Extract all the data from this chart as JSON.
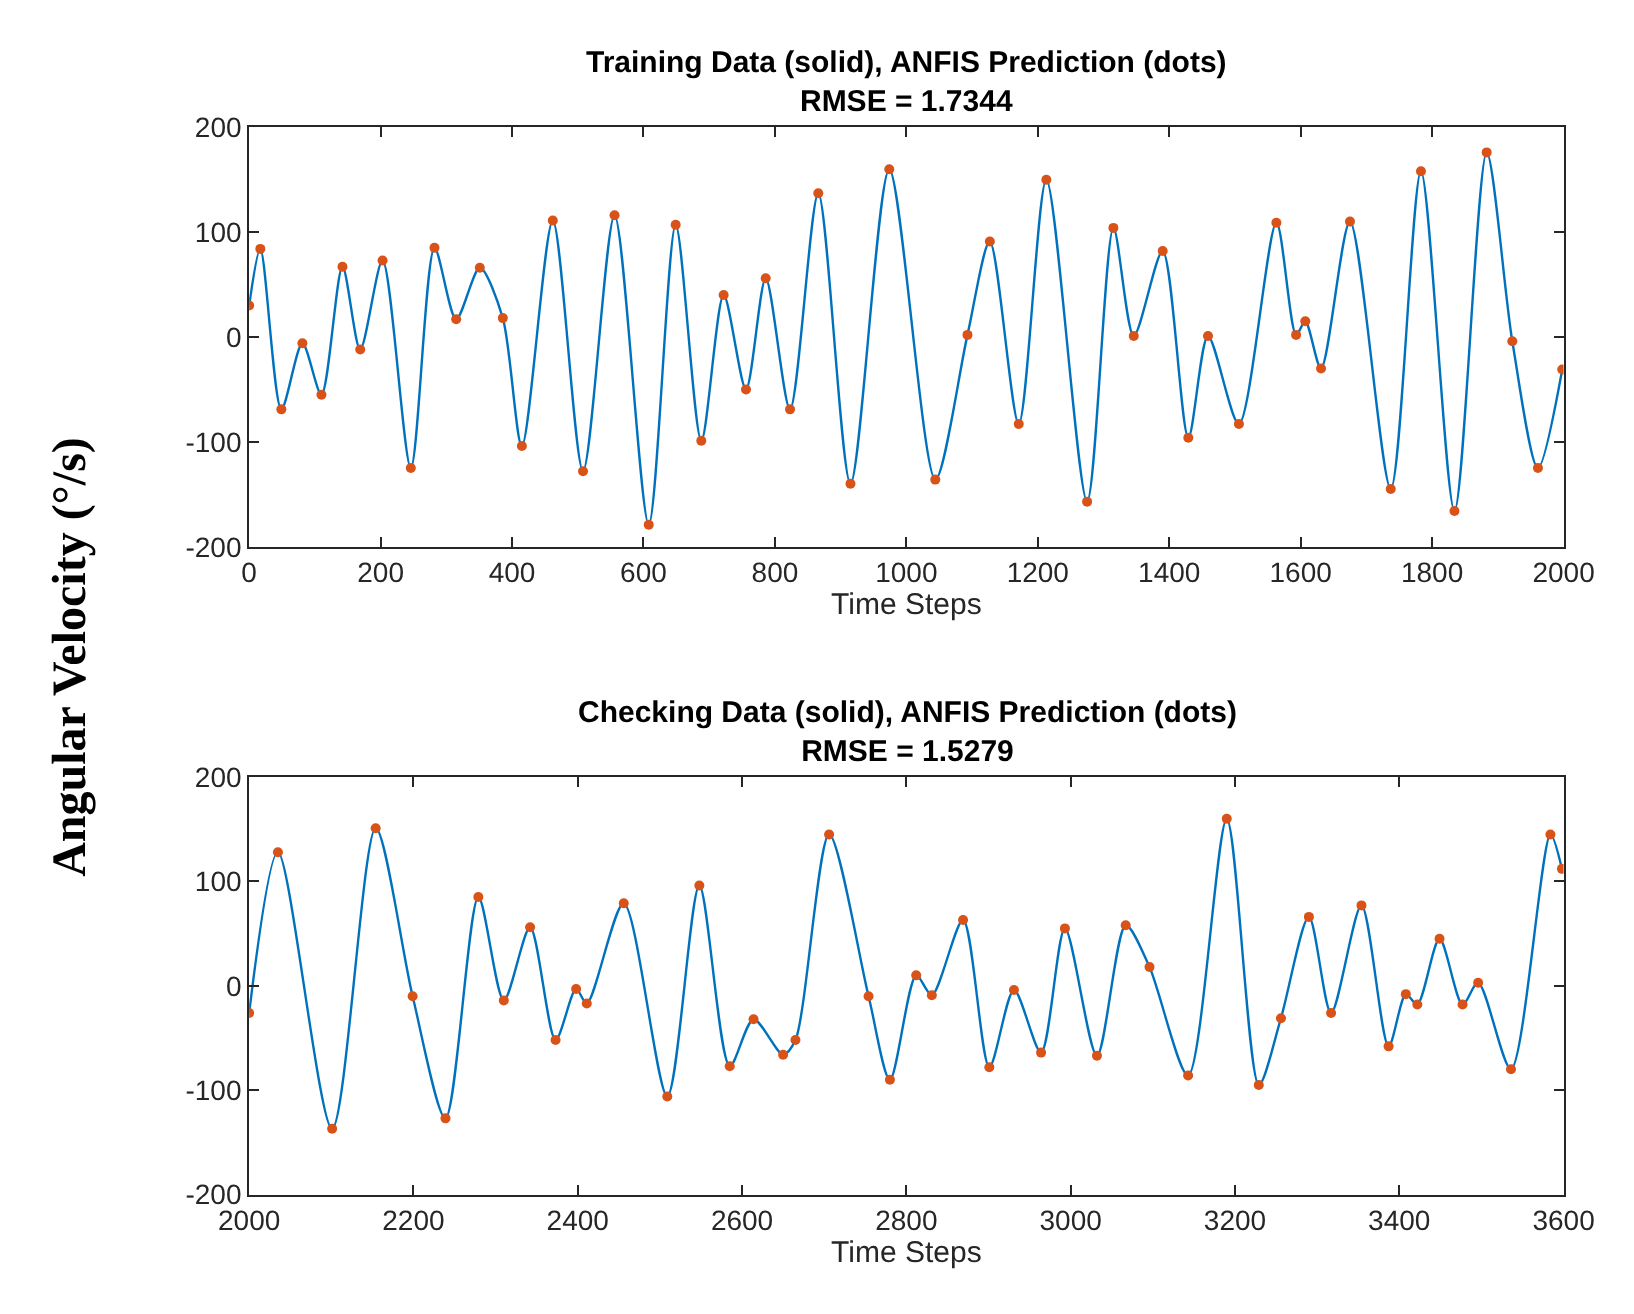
{
  "chart_data": [
    {
      "type": "line",
      "title": "Training Data (solid), ANFIS Prediction (dots)",
      "subtitle": "RMSE = 1.7344",
      "xlabel": "Time Steps",
      "ylabel": "Angular Velocity (°/s)",
      "xlim": [
        0,
        2000
      ],
      "xticks": [
        0,
        200,
        400,
        600,
        800,
        1000,
        1200,
        1400,
        1600,
        1800,
        2000
      ],
      "ylim": [
        -200,
        200
      ],
      "yticks": [
        -200,
        -100,
        0,
        100,
        200
      ],
      "x": [
        0,
        17,
        49,
        81,
        110,
        142,
        169,
        203,
        246,
        282,
        315,
        351,
        386,
        415,
        462,
        508,
        556,
        608,
        649,
        688,
        722,
        756,
        786,
        823,
        866,
        915,
        974,
        1044,
        1093,
        1127,
        1171,
        1213,
        1275,
        1315,
        1346,
        1390,
        1429,
        1459,
        1506,
        1563,
        1593,
        1607,
        1631,
        1675,
        1737,
        1783,
        1834,
        1883,
        1922,
        1961,
        1998
      ],
      "series": [
        {
          "color": "#0072bd",
          "marker": "none",
          "line_style": "solid",
          "values": [
            30,
            84,
            -69,
            -6,
            -55,
            67,
            -12,
            73,
            -125,
            85,
            17,
            66,
            18,
            -104,
            111,
            -128,
            116,
            -179,
            107,
            -99,
            40,
            -50,
            56,
            -69,
            137,
            -140,
            160,
            -136,
            2,
            91,
            -83,
            150,
            -157,
            104,
            1,
            82,
            -96,
            1,
            -83,
            109,
            2,
            15,
            -30,
            110,
            -145,
            158,
            -166,
            176,
            -4,
            -125,
            -31
          ]
        },
        {
          "type": "scatter",
          "color": "#d95319",
          "marker": "circle",
          "values": [
            30,
            84,
            -69,
            -6,
            -55,
            67,
            -12,
            73,
            -125,
            85,
            17,
            66,
            18,
            -104,
            111,
            -128,
            116,
            -179,
            107,
            -99,
            40,
            -50,
            56,
            -69,
            137,
            -140,
            160,
            -136,
            2,
            91,
            -83,
            150,
            -157,
            104,
            1,
            82,
            -96,
            1,
            -83,
            109,
            2,
            15,
            -30,
            110,
            -145,
            158,
            -166,
            176,
            -4,
            -125,
            -31
          ]
        }
      ]
    },
    {
      "type": "line",
      "title": "Checking Data (solid), ANFIS Prediction (dots)",
      "subtitle": "RMSE = 1.5279",
      "xlabel": "Time Steps",
      "xlim": [
        2000,
        3600
      ],
      "xticks": [
        2000,
        2200,
        2400,
        2600,
        2800,
        3000,
        3200,
        3400,
        3600
      ],
      "ylim": [
        -200,
        200
      ],
      "yticks": [
        -200,
        -100,
        0,
        100,
        200
      ],
      "x": [
        2000,
        2035,
        2101,
        2154,
        2199,
        2239,
        2279,
        2310,
        2342,
        2373,
        2398,
        2411,
        2456,
        2509,
        2548,
        2585,
        2614,
        2650,
        2665,
        2706,
        2754,
        2780,
        2812,
        2831,
        2869,
        2901,
        2931,
        2964,
        2993,
        3032,
        3067,
        3096,
        3143,
        3190,
        3229,
        3256,
        3290,
        3317,
        3354,
        3387,
        3408,
        3422,
        3449,
        3477,
        3496,
        3536,
        3584,
        3598
      ],
      "series": [
        {
          "color": "#0072bd",
          "marker": "none",
          "line_style": "solid",
          "values": [
            -26,
            128,
            -137,
            151,
            -10,
            -127,
            85,
            -14,
            56,
            -52,
            -3,
            -17,
            79,
            -106,
            96,
            -77,
            -32,
            -66,
            -52,
            145,
            -10,
            -90,
            10,
            -9,
            63,
            -78,
            -4,
            -64,
            55,
            -67,
            58,
            18,
            -86,
            160,
            -95,
            -31,
            66,
            -26,
            77,
            -58,
            -8,
            -18,
            45,
            -18,
            3,
            -80,
            145,
            112
          ]
        },
        {
          "type": "scatter",
          "color": "#d95319",
          "marker": "circle",
          "values": [
            -26,
            128,
            -137,
            151,
            -10,
            -127,
            85,
            -14,
            56,
            -52,
            -3,
            -17,
            79,
            -106,
            96,
            -77,
            -32,
            -66,
            -52,
            145,
            -10,
            -90,
            10,
            -9,
            63,
            -78,
            -4,
            -64,
            55,
            -67,
            58,
            18,
            -86,
            160,
            -95,
            -31,
            66,
            -26,
            77,
            -58,
            -8,
            -18,
            45,
            -18,
            3,
            -80,
            145,
            112
          ]
        }
      ]
    }
  ]
}
